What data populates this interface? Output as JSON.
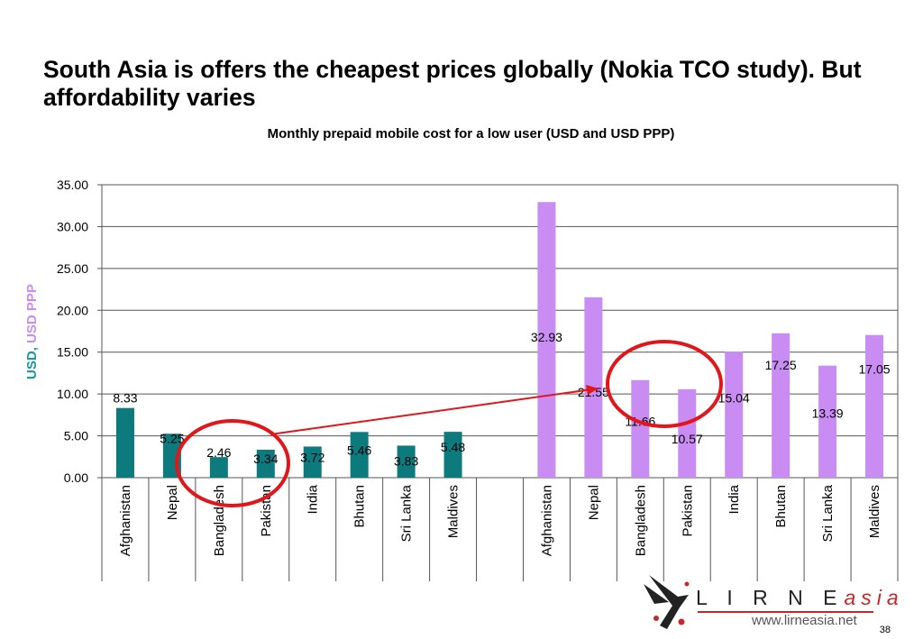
{
  "slide": {
    "title": "South Asia is offers the cheapest prices globally (Nokia TCO study).  But affordability varies",
    "page_number": "38"
  },
  "chart_data": {
    "type": "bar",
    "title": "Monthly prepaid mobile cost for a low user (USD and USD PPP)",
    "ylabel_parts": [
      {
        "text": "USD",
        "color": "#17989a"
      },
      {
        "text": ", ",
        "color": "#17989a"
      },
      {
        "text": "USD PPP",
        "color": "#c88cf2"
      }
    ],
    "ylim": [
      0,
      35
    ],
    "yticks": [
      "0.00",
      "5.00",
      "10.00",
      "15.00",
      "20.00",
      "25.00",
      "30.00",
      "35.00"
    ],
    "grid": true,
    "categories": [
      "Afghanistan",
      "Nepal",
      "Bangladesh",
      "Pakistan",
      "India",
      "Bhutan",
      "Sri Lanka",
      "Maldives",
      "",
      "Afghanistan",
      "Nepal",
      "Bangladesh",
      "Pakistan",
      "India",
      "Bhutan",
      "Sri Lanka",
      "Maldives"
    ],
    "series": [
      {
        "color": "#0d7a7e",
        "values": [
          8.33,
          5.25,
          2.46,
          3.34,
          3.72,
          5.46,
          3.83,
          5.48,
          null,
          null,
          null,
          null,
          null,
          null,
          null,
          null,
          null
        ],
        "labels": [
          "8.33",
          "5.25",
          "2.46",
          "3.34",
          "3.72",
          "5.46",
          "3.83",
          "5.48",
          "",
          "",
          "",
          "",
          "",
          "",
          "",
          "",
          ""
        ]
      },
      {
        "color": "#c88cf2",
        "values": [
          null,
          null,
          null,
          null,
          null,
          null,
          null,
          null,
          null,
          32.93,
          21.55,
          11.66,
          10.57,
          15.04,
          17.25,
          13.39,
          17.05
        ],
        "labels": [
          "",
          "",
          "",
          "",
          "",
          "",
          "",
          "",
          "",
          "32.93",
          "21.55",
          "11.66",
          "10.57",
          "15.04",
          "17.25",
          "13.39",
          "17.05"
        ]
      }
    ],
    "annotations": [
      {
        "type": "ellipse",
        "around": [
          "Bangladesh",
          "Pakistan"
        ],
        "series": "USD",
        "color": "#e0161b"
      },
      {
        "type": "ellipse",
        "around": [
          "Bangladesh",
          "Pakistan"
        ],
        "series": "USD PPP",
        "color": "#e0161b"
      },
      {
        "type": "arrow",
        "color": "#e0161b"
      }
    ]
  },
  "logo": {
    "name_main": "L I R N E",
    "name_suffix": "asia",
    "url": "www.lirneasia.net"
  }
}
